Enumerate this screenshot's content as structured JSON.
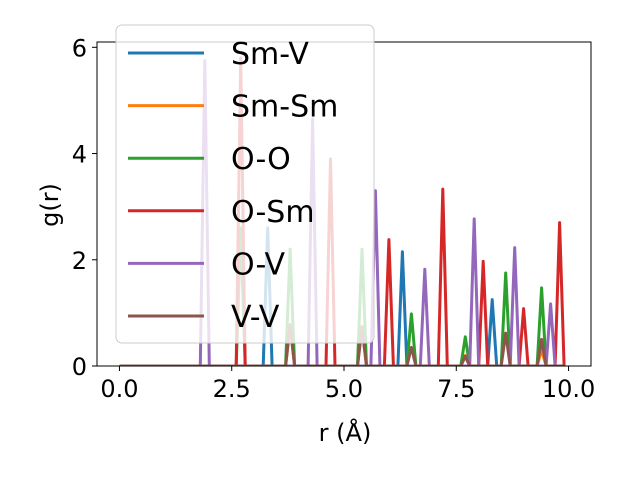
{
  "chart_data": {
    "type": "line",
    "title": "",
    "xlabel": "r (Å)",
    "ylabel": "g(r)",
    "xlim": [
      -0.5,
      10.5
    ],
    "ylim": [
      0,
      6.1
    ],
    "xticks": [
      "0.0",
      "2.5",
      "5.0",
      "7.5",
      "10.0"
    ],
    "xtick_values": [
      0,
      2.5,
      5,
      7.5,
      10
    ],
    "yticks": [
      "0",
      "2",
      "4",
      "6"
    ],
    "ytick_values": [
      0,
      2,
      4,
      6
    ],
    "grid": false,
    "legend_position": "upper left",
    "x_range": [
      0,
      9.9
    ],
    "series": [
      {
        "name": "Sm-V",
        "color": "#1f77b4",
        "peaks": [
          [
            3.3,
            2.6
          ],
          [
            6.3,
            2.15
          ],
          [
            8.3,
            1.25
          ]
        ]
      },
      {
        "name": "Sm-Sm",
        "color": "#ff7f0e",
        "peaks": [
          [
            3.8,
            0.75
          ],
          [
            5.4,
            0.75
          ],
          [
            7.7,
            0.2
          ],
          [
            9.4,
            0.3
          ]
        ]
      },
      {
        "name": "O-O",
        "color": "#2ca02c",
        "peaks": [
          [
            2.7,
            2.6
          ],
          [
            3.8,
            2.2
          ],
          [
            5.4,
            2.2
          ],
          [
            6.5,
            0.98
          ],
          [
            7.7,
            0.55
          ],
          [
            8.6,
            1.75
          ],
          [
            9.4,
            1.47
          ]
        ]
      },
      {
        "name": "O-Sm",
        "color": "#d62728",
        "peaks": [
          [
            2.7,
            5.8
          ],
          [
            4.7,
            3.9
          ],
          [
            6.0,
            2.38
          ],
          [
            7.2,
            3.33
          ],
          [
            8.1,
            1.97
          ],
          [
            9.0,
            1.08
          ],
          [
            9.8,
            2.7
          ]
        ]
      },
      {
        "name": "O-V",
        "color": "#9467bd",
        "peaks": [
          [
            1.9,
            5.75
          ],
          [
            4.3,
            4.65
          ],
          [
            5.7,
            3.3
          ],
          [
            6.8,
            1.82
          ],
          [
            7.9,
            2.77
          ],
          [
            8.8,
            2.23
          ],
          [
            9.6,
            1.17
          ]
        ]
      },
      {
        "name": "V-V",
        "color": "#8c564b",
        "peaks": [
          [
            3.8,
            0.78
          ],
          [
            5.4,
            0.72
          ],
          [
            6.5,
            0.35
          ],
          [
            7.7,
            0.18
          ],
          [
            8.6,
            0.62
          ],
          [
            9.4,
            0.5
          ]
        ]
      }
    ]
  }
}
